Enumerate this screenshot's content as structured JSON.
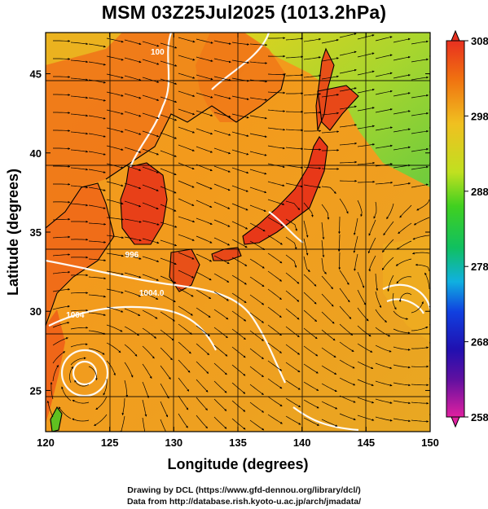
{
  "title": "MSM 03Z25Jul2025 (1013.2hPa)",
  "x_axis": {
    "label": "Longitude (degrees)",
    "ticks": [
      {
        "value": 120,
        "label": "120"
      },
      {
        "value": 125,
        "label": "125"
      },
      {
        "value": 130,
        "label": "130"
      },
      {
        "value": 135,
        "label": "135"
      },
      {
        "value": 140,
        "label": "140"
      },
      {
        "value": 145,
        "label": "145"
      },
      {
        "value": 150,
        "label": "150"
      }
    ]
  },
  "y_axis": {
    "label": "Latitude  (degrees)",
    "ticks": [
      {
        "value": 25,
        "label": "25"
      },
      {
        "value": 30,
        "label": "30"
      },
      {
        "value": 35,
        "label": "35"
      },
      {
        "value": 40,
        "label": "40"
      },
      {
        "value": 45,
        "label": "45"
      }
    ]
  },
  "colorbar": {
    "ticks": [
      {
        "value": 308,
        "label": "308"
      },
      {
        "value": 298,
        "label": "298"
      },
      {
        "value": 288,
        "label": "288"
      },
      {
        "value": 278,
        "label": "278"
      },
      {
        "value": 268,
        "label": "268"
      },
      {
        "value": 258,
        "label": "258"
      }
    ],
    "colors": [
      "#d01070",
      "#4010a0",
      "#1040e0",
      "#10b0e0",
      "#10c060",
      "#40d020",
      "#c0e020",
      "#f0c020",
      "#f07010",
      "#e83020"
    ]
  },
  "contour_labels": [
    {
      "text": "996",
      "lon": 126.2,
      "lat": 33.4
    },
    {
      "text": "1004.0",
      "lon": 127.3,
      "lat": 31.0
    },
    {
      "text": "1004",
      "lon": 121.6,
      "lat": 29.6
    },
    {
      "text": "100",
      "lon": 128.2,
      "lat": 46.2
    }
  ],
  "credits": {
    "line1": "Drawing by DCL (https://www.gfd-dennou.org/library/dcl/)",
    "line2": "Data from http://database.rish.kyoto-u.ac.jp/arch/jmadata/"
  }
}
